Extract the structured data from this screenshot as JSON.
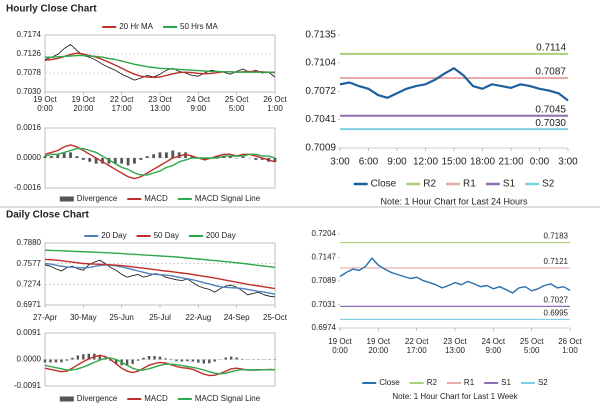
{
  "headings": [
    "Hourly Close Chart",
    "Daily Close Chart"
  ],
  "chart_data": [
    {
      "type": "line",
      "grid": true,
      "categories": [
        [
          "19 Oct",
          "0:00"
        ],
        null,
        null,
        null,
        null,
        null,
        [
          "19 Oct",
          "20:00"
        ],
        null,
        null,
        null,
        null,
        null,
        [
          "22 Oct",
          "17:00"
        ],
        null,
        null,
        null,
        null,
        null,
        [
          "23 Oct",
          "13:00"
        ],
        null,
        null,
        null,
        null,
        null,
        [
          "24 Oct",
          "9:00"
        ],
        null,
        null,
        null,
        null,
        null,
        [
          "25 Oct",
          "5:00"
        ],
        null,
        null,
        null,
        null,
        null,
        [
          "26 Oct",
          "1:00"
        ]
      ],
      "ylim": [
        0.703,
        0.7174
      ],
      "yticks": [
        0.7174,
        0.7126,
        {
          "value": 0.7078,
          "label": "0.7078"
        },
        {
          "value": 0.703,
          "label": "0.7030"
        }
      ],
      "series": [
        {
          "color": "#111111",
          "values": [
            0.7112,
            0.7118,
            0.7125,
            0.714,
            0.715,
            0.7135,
            0.7122,
            0.7118,
            0.711,
            0.71,
            0.7092,
            0.7085,
            0.7075,
            0.7068,
            0.706,
            0.7065,
            0.7072,
            0.7068,
            0.7075,
            0.7085,
            0.709,
            0.7082,
            0.7078,
            0.7072,
            0.707,
            0.7078,
            0.7085,
            0.7082,
            0.708,
            0.7075,
            0.7082,
            0.7088,
            0.708,
            0.7085,
            0.7078,
            0.708,
            0.7068
          ]
        },
        {
          "name": "20 Hr MA",
          "color": "#c0302b",
          "values": [
            0.711,
            0.7112,
            0.7115,
            0.712,
            0.7125,
            0.7128,
            0.7126,
            0.7122,
            0.7118,
            0.7112,
            0.7105,
            0.7098,
            0.709,
            0.7082,
            0.7075,
            0.707,
            0.7068,
            0.7067,
            0.7068,
            0.7072,
            0.7076,
            0.7079,
            0.708,
            0.7079,
            0.7077,
            0.7076,
            0.7077,
            0.7079,
            0.7081,
            0.7081,
            0.708,
            0.7081,
            0.7082,
            0.7082,
            0.7081,
            0.708,
            0.7079
          ]
        },
        {
          "name": "50 Hrs MA",
          "color": "#2ea84a",
          "values": [
            0.7118,
            0.7118,
            0.7119,
            0.712,
            0.7121,
            0.7122,
            0.7122,
            0.7121,
            0.712,
            0.7118,
            0.7115,
            0.7112,
            0.7108,
            0.7104,
            0.71,
            0.7097,
            0.7094,
            0.7092,
            0.709,
            0.7089,
            0.7088,
            0.7087,
            0.7086,
            0.7085,
            0.7084,
            0.7083,
            0.7082,
            0.7082,
            0.7081,
            0.7081,
            0.708,
            0.708,
            0.708,
            0.708,
            0.708,
            0.708,
            0.708
          ]
        }
      ]
    },
    {
      "type": "combo",
      "grid": true,
      "ylim": [
        -0.0016,
        0.0016
      ],
      "yticks": [
        0.0016,
        {
          "value": 0,
          "label": "0.0000"
        },
        {
          "value": -0.0016,
          "label": "-0.0016"
        }
      ],
      "series": [
        {
          "name": "Divergence",
          "style": "bar",
          "color": "#555555",
          "values": [
            0.0001,
            0.0001,
            0.0002,
            0.0003,
            0.0003,
            0.0001,
            -0.0001,
            -0.0002,
            -0.0003,
            -0.0003,
            -0.0003,
            -0.0003,
            -0.0003,
            -0.0004,
            -0.0003,
            -0.0001,
            0.0001,
            0.0002,
            0.0003,
            0.0003,
            0.0004,
            0.0003,
            0.0003,
            0.0001,
            0.0,
            -0.0001,
            0.0,
            0.0001,
            0.0001,
            0.0001,
            0.0,
            0.0001,
            0.0,
            -0.0001,
            -0.0001,
            -0.0002,
            -0.0002
          ]
        },
        {
          "name": "MACD",
          "color": "#c0302b",
          "values": [
            0.0002,
            0.0003,
            0.0004,
            0.0006,
            0.0007,
            0.0006,
            0.0004,
            0.0002,
            0.0,
            -0.0002,
            -0.0004,
            -0.0006,
            -0.0008,
            -0.001,
            -0.0011,
            -0.001,
            -0.0008,
            -0.0006,
            -0.0004,
            -0.0002,
            0.0,
            0.0001,
            0.0002,
            0.0001,
            0.0,
            -0.0001,
            0.0,
            0.0001,
            0.0002,
            0.0002,
            0.0001,
            0.0002,
            0.0002,
            0.0001,
            0.0,
            -0.0001,
            -0.0002
          ]
        },
        {
          "name": "MACD Signal Line",
          "color": "#2ea84a",
          "values": [
            0.0001,
            0.0002,
            0.0002,
            0.0003,
            0.0004,
            0.0005,
            0.0005,
            0.0004,
            0.0003,
            0.0001,
            -0.0001,
            -0.0003,
            -0.0005,
            -0.0006,
            -0.0008,
            -0.0009,
            -0.0009,
            -0.0008,
            -0.0007,
            -0.0005,
            -0.0004,
            -0.0002,
            -0.0001,
            0.0,
            0.0,
            0.0,
            0.0,
            0.0,
            0.0001,
            0.0001,
            0.0001,
            0.0001,
            0.0002,
            0.0002,
            0.0001,
            0.0001,
            0.0
          ]
        }
      ]
    },
    {
      "type": "line",
      "grid": false,
      "note": "Note: 1 Hour Chart for Last 24 Hours",
      "categories": [
        "3:00",
        null,
        null,
        "6:00",
        null,
        null,
        "9:00",
        null,
        null,
        "12:00",
        null,
        null,
        "15:00",
        null,
        null,
        "18:00",
        null,
        null,
        "21:00",
        null,
        null,
        "0:00",
        null,
        null,
        "3:00"
      ],
      "ylim": [
        0.7009,
        0.7135
      ],
      "yticks": [
        0.7135,
        0.7104,
        0.7072,
        0.7041,
        0.7009
      ],
      "series": [
        {
          "name": "Close",
          "color": "#1f5f9e",
          "values": [
            0.708,
            0.7082,
            0.7078,
            0.7075,
            0.7068,
            0.7065,
            0.707,
            0.7075,
            0.7078,
            0.708,
            0.7085,
            0.7092,
            0.7098,
            0.709,
            0.7078,
            0.7075,
            0.708,
            0.7078,
            0.7076,
            0.708,
            0.7078,
            0.7075,
            0.7073,
            0.707,
            0.7062
          ]
        }
      ],
      "levels": [
        {
          "name": "R2",
          "value": 0.7114,
          "color": "#a9cf7c"
        },
        {
          "name": "R1",
          "value": 0.7087,
          "color": "#e7aaa8"
        },
        {
          "name": "S1",
          "value": 0.7045,
          "color": "#8e6fb4"
        },
        {
          "name": "S2",
          "value": 0.703,
          "label": "0.7030",
          "color": "#7fd0e6"
        }
      ]
    },
    {
      "type": "line",
      "grid": true,
      "categories": [
        "27-Apr",
        null,
        null,
        null,
        null,
        null,
        null,
        "30-May",
        null,
        null,
        null,
        null,
        null,
        null,
        "25-Jun",
        null,
        null,
        null,
        null,
        null,
        null,
        "25-Jul",
        null,
        null,
        null,
        null,
        null,
        null,
        "22-Aug",
        null,
        null,
        null,
        null,
        null,
        null,
        "24-Sep",
        null,
        null,
        null,
        null,
        null,
        null,
        "25-Oct"
      ],
      "ylim": [
        0.6971,
        0.788
      ],
      "yticks": [
        {
          "value": 0.788,
          "label": "0.7880"
        },
        0.7577,
        0.7274,
        0.6971
      ],
      "series": [
        {
          "color": "#111111",
          "values": [
            0.756,
            0.754,
            0.75,
            0.747,
            0.752,
            0.754,
            0.75,
            0.748,
            0.756,
            0.76,
            0.763,
            0.758,
            0.752,
            0.748,
            0.742,
            0.738,
            0.74,
            0.742,
            0.738,
            0.74,
            0.743,
            0.742,
            0.738,
            0.736,
            0.734,
            0.733,
            0.735,
            0.73,
            0.725,
            0.722,
            0.72,
            0.716,
            0.721,
            0.725,
            0.726,
            0.723,
            0.718,
            0.712,
            0.714,
            0.716,
            0.712,
            0.71,
            0.709
          ]
        },
        {
          "name": "20 Day",
          "color": "#4f81bd",
          "values": [
            0.758,
            0.757,
            0.7555,
            0.754,
            0.753,
            0.7525,
            0.752,
            0.7515,
            0.752,
            0.7535,
            0.755,
            0.756,
            0.7555,
            0.7545,
            0.753,
            0.751,
            0.749,
            0.747,
            0.745,
            0.743,
            0.742,
            0.7415,
            0.741,
            0.74,
            0.7385,
            0.737,
            0.7355,
            0.734,
            0.732,
            0.73,
            0.728,
            0.7255,
            0.724,
            0.723,
            0.7225,
            0.722,
            0.7215,
            0.72,
            0.7185,
            0.717,
            0.716,
            0.7145,
            0.713
          ]
        },
        {
          "name": "50 Day",
          "color": "#c0302b",
          "values": [
            0.764,
            0.7635,
            0.763,
            0.762,
            0.761,
            0.76,
            0.759,
            0.758,
            0.7575,
            0.757,
            0.7568,
            0.7565,
            0.756,
            0.7555,
            0.7548,
            0.754,
            0.753,
            0.752,
            0.751,
            0.75,
            0.749,
            0.748,
            0.747,
            0.746,
            0.745,
            0.744,
            0.743,
            0.7418,
            0.7405,
            0.7392,
            0.738,
            0.7365,
            0.735,
            0.7335,
            0.732,
            0.7305,
            0.729,
            0.7275,
            0.7262,
            0.725,
            0.7238,
            0.7225,
            0.7212
          ]
        },
        {
          "name": "200 Day",
          "color": "#2ea84a",
          "values": [
            0.7775,
            0.7772,
            0.7768,
            0.7765,
            0.7762,
            0.7758,
            0.7755,
            0.7752,
            0.7748,
            0.7745,
            0.7742,
            0.7738,
            0.7735,
            0.773,
            0.7725,
            0.772,
            0.7715,
            0.771,
            0.7705,
            0.77,
            0.7695,
            0.769,
            0.7685,
            0.768,
            0.7675,
            0.7668,
            0.766,
            0.7652,
            0.7645,
            0.7638,
            0.763,
            0.7622,
            0.7614,
            0.7606,
            0.7598,
            0.759,
            0.7582,
            0.7572,
            0.7562,
            0.7552,
            0.7542,
            0.7532,
            0.7522
          ]
        }
      ]
    },
    {
      "type": "combo",
      "grid": true,
      "ylim": [
        -0.0091,
        0.0091
      ],
      "yticks": [
        0.0091,
        {
          "value": 0,
          "label": "0.0000"
        },
        -0.0091
      ],
      "series": [
        {
          "name": "Divergence",
          "style": "bar",
          "color": "#555555",
          "values": [
            -0.001,
            -0.001,
            -0.001,
            -0.001,
            -0.0004,
            0.0006,
            0.0014,
            0.0018,
            0.002,
            0.002,
            0.0016,
            0.0006,
            -0.0005,
            -0.0015,
            -0.002,
            -0.002,
            -0.0015,
            -0.0004,
            0.0006,
            0.0012,
            0.0012,
            0.001,
            0.0004,
            -0.0002,
            -0.0006,
            -0.0007,
            -0.0006,
            -0.0007,
            -0.0011,
            -0.0014,
            -0.0013,
            -0.0007,
            0.0001,
            0.0007,
            0.001,
            0.0007,
            0.0002,
            -0.0001,
            0.0,
            0.0001,
            0.0,
            0.0001,
            0.0
          ]
        },
        {
          "name": "MACD",
          "color": "#c0302b",
          "values": [
            -0.003,
            -0.0034,
            -0.0038,
            -0.0042,
            -0.004,
            -0.003,
            -0.0018,
            -0.0008,
            0.0002,
            0.001,
            0.0014,
            0.001,
            0.0,
            -0.0015,
            -0.003,
            -0.004,
            -0.0045,
            -0.004,
            -0.003,
            -0.002,
            -0.0014,
            -0.001,
            -0.0012,
            -0.0018,
            -0.0024,
            -0.0028,
            -0.003,
            -0.0034,
            -0.0042,
            -0.005,
            -0.0055,
            -0.0054,
            -0.0048,
            -0.004,
            -0.0032,
            -0.003,
            -0.0033,
            -0.0036,
            -0.0036,
            -0.0035,
            -0.0035,
            -0.0034,
            -0.0035
          ]
        },
        {
          "name": "MACD Signal Line",
          "color": "#2ea84a",
          "values": [
            -0.002,
            -0.0024,
            -0.0028,
            -0.0032,
            -0.0036,
            -0.0036,
            -0.0032,
            -0.0026,
            -0.0018,
            -0.001,
            -0.0002,
            0.0004,
            0.0005,
            0.0,
            -0.001,
            -0.002,
            -0.003,
            -0.0036,
            -0.0036,
            -0.0032,
            -0.0026,
            -0.002,
            -0.0016,
            -0.0016,
            -0.0018,
            -0.0021,
            -0.0024,
            -0.0027,
            -0.0031,
            -0.0036,
            -0.0042,
            -0.0047,
            -0.0049,
            -0.0047,
            -0.0042,
            -0.0037,
            -0.0035,
            -0.0035,
            -0.0036,
            -0.0036,
            -0.0035,
            -0.0035,
            -0.0035
          ]
        }
      ]
    },
    {
      "type": "line",
      "grid": false,
      "note": "Note: 1 Hour Chart for Last 1 Week",
      "categories": [
        [
          "19 Oct",
          "0:00"
        ],
        null,
        null,
        null,
        null,
        null,
        [
          "19 Oct",
          "20:00"
        ],
        null,
        null,
        null,
        null,
        null,
        [
          "22 Oct",
          "17:00"
        ],
        null,
        null,
        null,
        null,
        null,
        [
          "23 Oct",
          "13:00"
        ],
        null,
        null,
        null,
        null,
        null,
        [
          "24 Oct",
          "9:00"
        ],
        null,
        null,
        null,
        null,
        null,
        [
          "25 Oct",
          "5:00"
        ],
        null,
        null,
        null,
        null,
        null,
        [
          "26 Oct",
          "1:00"
        ]
      ],
      "ylim": [
        0.6974,
        0.7204
      ],
      "yticks": [
        0.7204,
        0.7147,
        0.7089,
        0.7031,
        0.6974
      ],
      "series": [
        {
          "name": "Close",
          "color": "#2a6fae",
          "values": [
            0.71,
            0.711,
            0.7118,
            0.7115,
            0.7125,
            0.7145,
            0.7128,
            0.7118,
            0.711,
            0.7105,
            0.71,
            0.7095,
            0.7098,
            0.709,
            0.7085,
            0.708,
            0.7072,
            0.7078,
            0.7085,
            0.708,
            0.7088,
            0.7082,
            0.7075,
            0.7078,
            0.707,
            0.7075,
            0.7068,
            0.706,
            0.7072,
            0.7075,
            0.7065,
            0.707,
            0.7078,
            0.7082,
            0.7072,
            0.7075,
            0.7066
          ]
        }
      ],
      "levels": [
        {
          "name": "R2",
          "value": 0.7183,
          "color": "#a9cf7c"
        },
        {
          "name": "R1",
          "value": 0.7121,
          "color": "#e7aaa8"
        },
        {
          "name": "S1",
          "value": 0.7027,
          "color": "#8e6fb4"
        },
        {
          "name": "S2",
          "value": 0.6995,
          "color": "#7fd0e6"
        }
      ]
    }
  ]
}
